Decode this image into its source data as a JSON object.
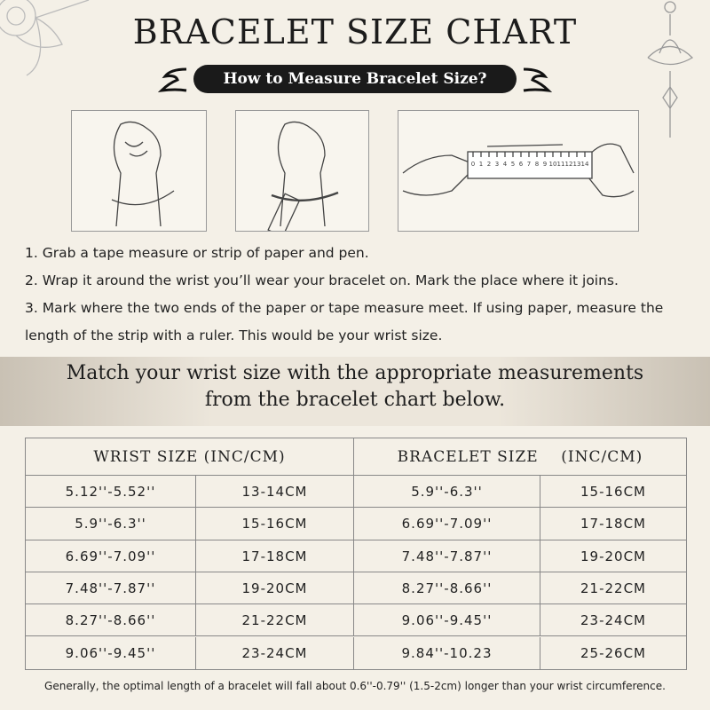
{
  "header": {
    "title": "BRACELET SIZE CHART",
    "subtitle": "How to Measure Bracelet Size?"
  },
  "ruler": [
    0,
    1,
    2,
    3,
    4,
    5,
    6,
    7,
    8,
    9,
    10,
    11,
    12,
    13,
    14
  ],
  "steps": [
    "1. Grab a tape measure or strip of paper and pen.",
    "2. Wrap it around the wrist you’ll wear your bracelet on. Mark the place where it joins.",
    "3. Mark where the two ends of the paper or tape measure meet. If using paper, measure the length of the strip with a ruler. This would be your wrist size."
  ],
  "match": [
    "Match your wrist size with the appropriate measurements",
    "from the bracelet chart below."
  ],
  "table": {
    "headers": [
      "WRIST SIZE (INC/CM)",
      "BRACELET SIZE    (INC/CM)"
    ],
    "rows": [
      [
        "5.12''-5.52''",
        "13-14CM",
        "5.9''-6.3''",
        "15-16CM"
      ],
      [
        "5.9''-6.3''",
        "15-16CM",
        "6.69''-7.09''",
        "17-18CM"
      ],
      [
        "6.69''-7.09''",
        "17-18CM",
        "7.48''-7.87''",
        "19-20CM"
      ],
      [
        "7.48''-7.87''",
        "19-20CM",
        "8.27''-8.66''",
        "21-22CM"
      ],
      [
        "8.27''-8.66''",
        "21-22CM",
        "9.06''-9.45''",
        "23-24CM"
      ],
      [
        "9.06''-9.45''",
        "23-24CM",
        "9.84''-10.23",
        "25-26CM"
      ]
    ]
  },
  "footnote": "Generally, the optimal length of a bracelet will fall about 0.6''-0.79'' (1.5-2cm) longer than your wrist circumference."
}
